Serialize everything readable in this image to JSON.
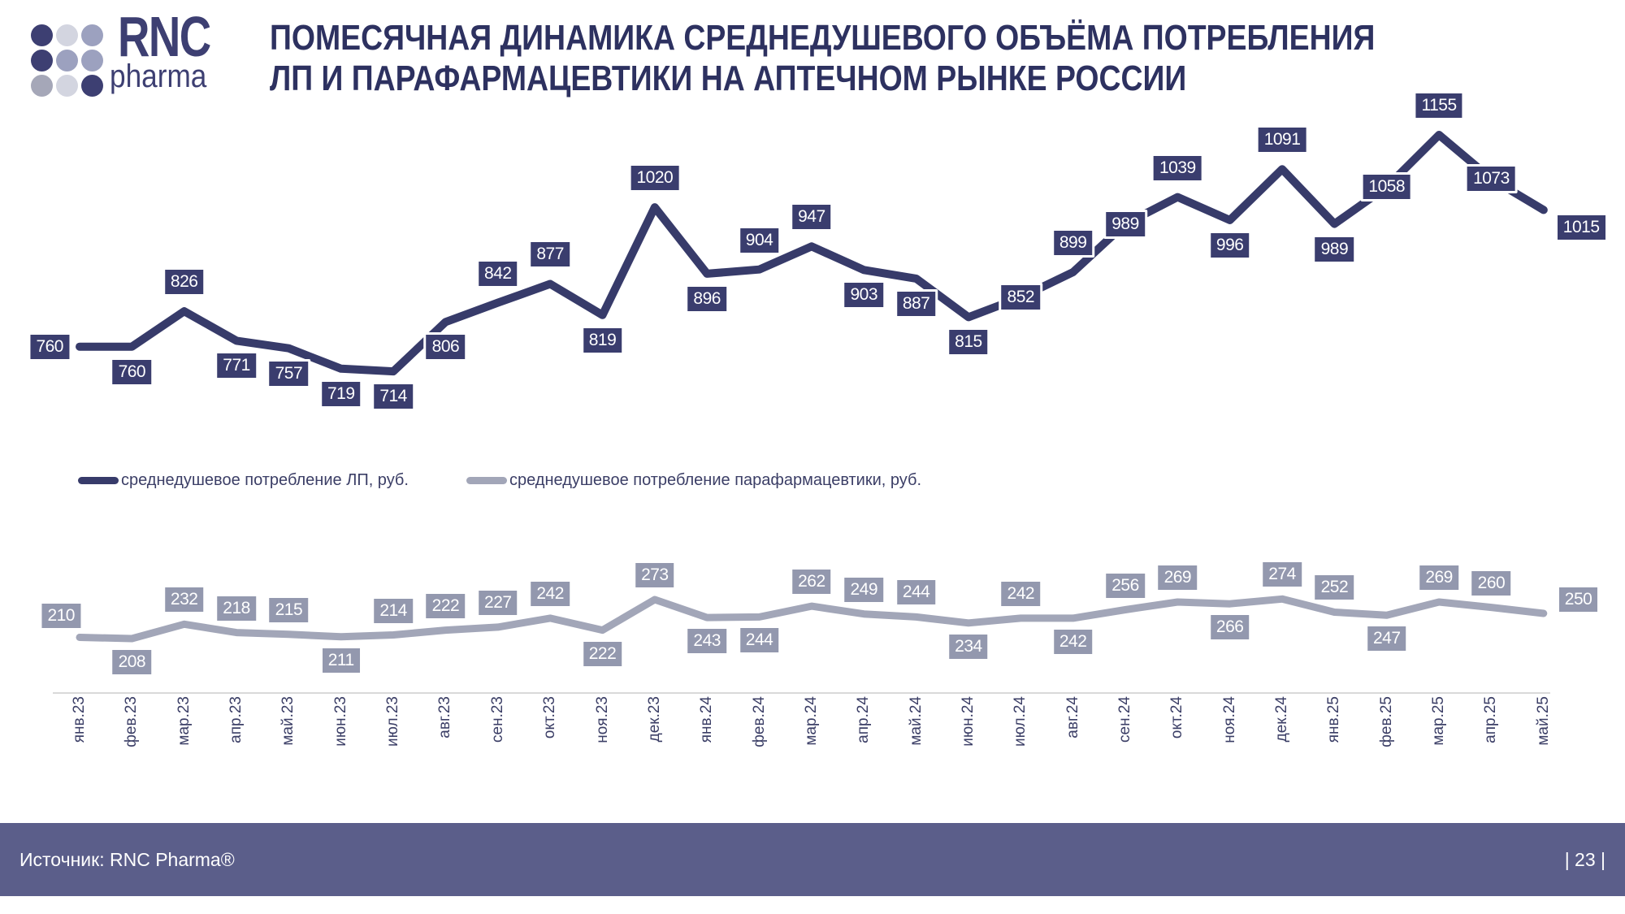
{
  "header": {
    "title_line1": "ПОМЕСЯЧНАЯ ДИНАМИКА СРЕДНЕДУШЕВОГО ОБЪЁМА ПОТРЕБЛЕНИЯ",
    "title_line2": "ЛП И ПАРАФАРМАЦЕВТИКИ НА АПТЕЧНОМ РЫНКЕ РОССИИ"
  },
  "logo": {
    "main": "RNC",
    "sub": "pharma",
    "dot_colors": [
      "#3d3f72",
      "#d3d5e0",
      "#9ca1bf",
      "#3d3f72",
      "#9ca1bf",
      "#9ca1bf",
      "#a5a7b8",
      "#d3d5e0",
      "#3d3f72"
    ]
  },
  "footer": {
    "source": "Источник: RNC Pharma®",
    "page": "| 23 |",
    "bg_color": "#5b5e8a"
  },
  "chart_data": {
    "type": "line",
    "title": "ПОМЕСЯЧНАЯ ДИНАМИКА СРЕДНЕДУШЕВОГО ОБЪЁМА ПОТРЕБЛЕНИЯ ЛП И ПАРАФАРМАЦЕВТИКИ НА АПТЕЧНОМ РЫНКЕ РОССИИ",
    "grid": false,
    "value_labels": true,
    "legend_position": "middle-left",
    "x_axis_line_color": "#d9d9d9",
    "categories": [
      "янв.23",
      "фев.23",
      "мар.23",
      "апр.23",
      "май.23",
      "июн.23",
      "июл.23",
      "авг.23",
      "сен.23",
      "окт.23",
      "ноя.23",
      "дек.23",
      "янв.24",
      "фев.24",
      "мар.24",
      "апр.24",
      "май.24",
      "июн.24",
      "июл.24",
      "авг.24",
      "сен.24",
      "окт.24",
      "ноя.24",
      "дек.24",
      "янв.25",
      "фев.25",
      "мар.25",
      "апр.25",
      "май.25"
    ],
    "series": [
      {
        "name": "среднедушевое потребление ЛП, руб.",
        "color": "#373b6a",
        "label_bg": "#3a3d6e",
        "values": [
          760,
          760,
          826,
          771,
          757,
          719,
          714,
          806,
          842,
          877,
          819,
          1020,
          896,
          904,
          947,
          903,
          887,
          815,
          852,
          899,
          989,
          1039,
          996,
          1091,
          989,
          1058,
          1155,
          1073,
          1015
        ],
        "label_pos": [
          "left",
          "below",
          "above",
          "below",
          "below",
          "below",
          "below",
          "below",
          "above",
          "above",
          "below",
          "above",
          "below",
          "above",
          "above",
          "below",
          "below",
          "below",
          "on",
          "above",
          "on",
          "above",
          "below",
          "above",
          "below",
          "on",
          "above",
          "on",
          "right-below"
        ]
      },
      {
        "name": "среднедушевое потребление парафармацевтики, руб.",
        "color": "#a2a6b8",
        "label_bg": "#9398ae",
        "values": [
          210,
          208,
          232,
          218,
          215,
          211,
          214,
          222,
          227,
          242,
          222,
          273,
          243,
          244,
          262,
          249,
          244,
          234,
          242,
          242,
          256,
          269,
          266,
          274,
          252,
          247,
          269,
          260,
          250
        ],
        "label_pos": [
          "left-above",
          "below",
          "above",
          "above",
          "above",
          "below",
          "above",
          "above",
          "above",
          "above",
          "below",
          "above",
          "below",
          "below",
          "above",
          "above",
          "above",
          "below",
          "above",
          "below",
          "above",
          "above",
          "below",
          "above",
          "above",
          "below",
          "above",
          "above",
          "right-above"
        ]
      }
    ]
  }
}
